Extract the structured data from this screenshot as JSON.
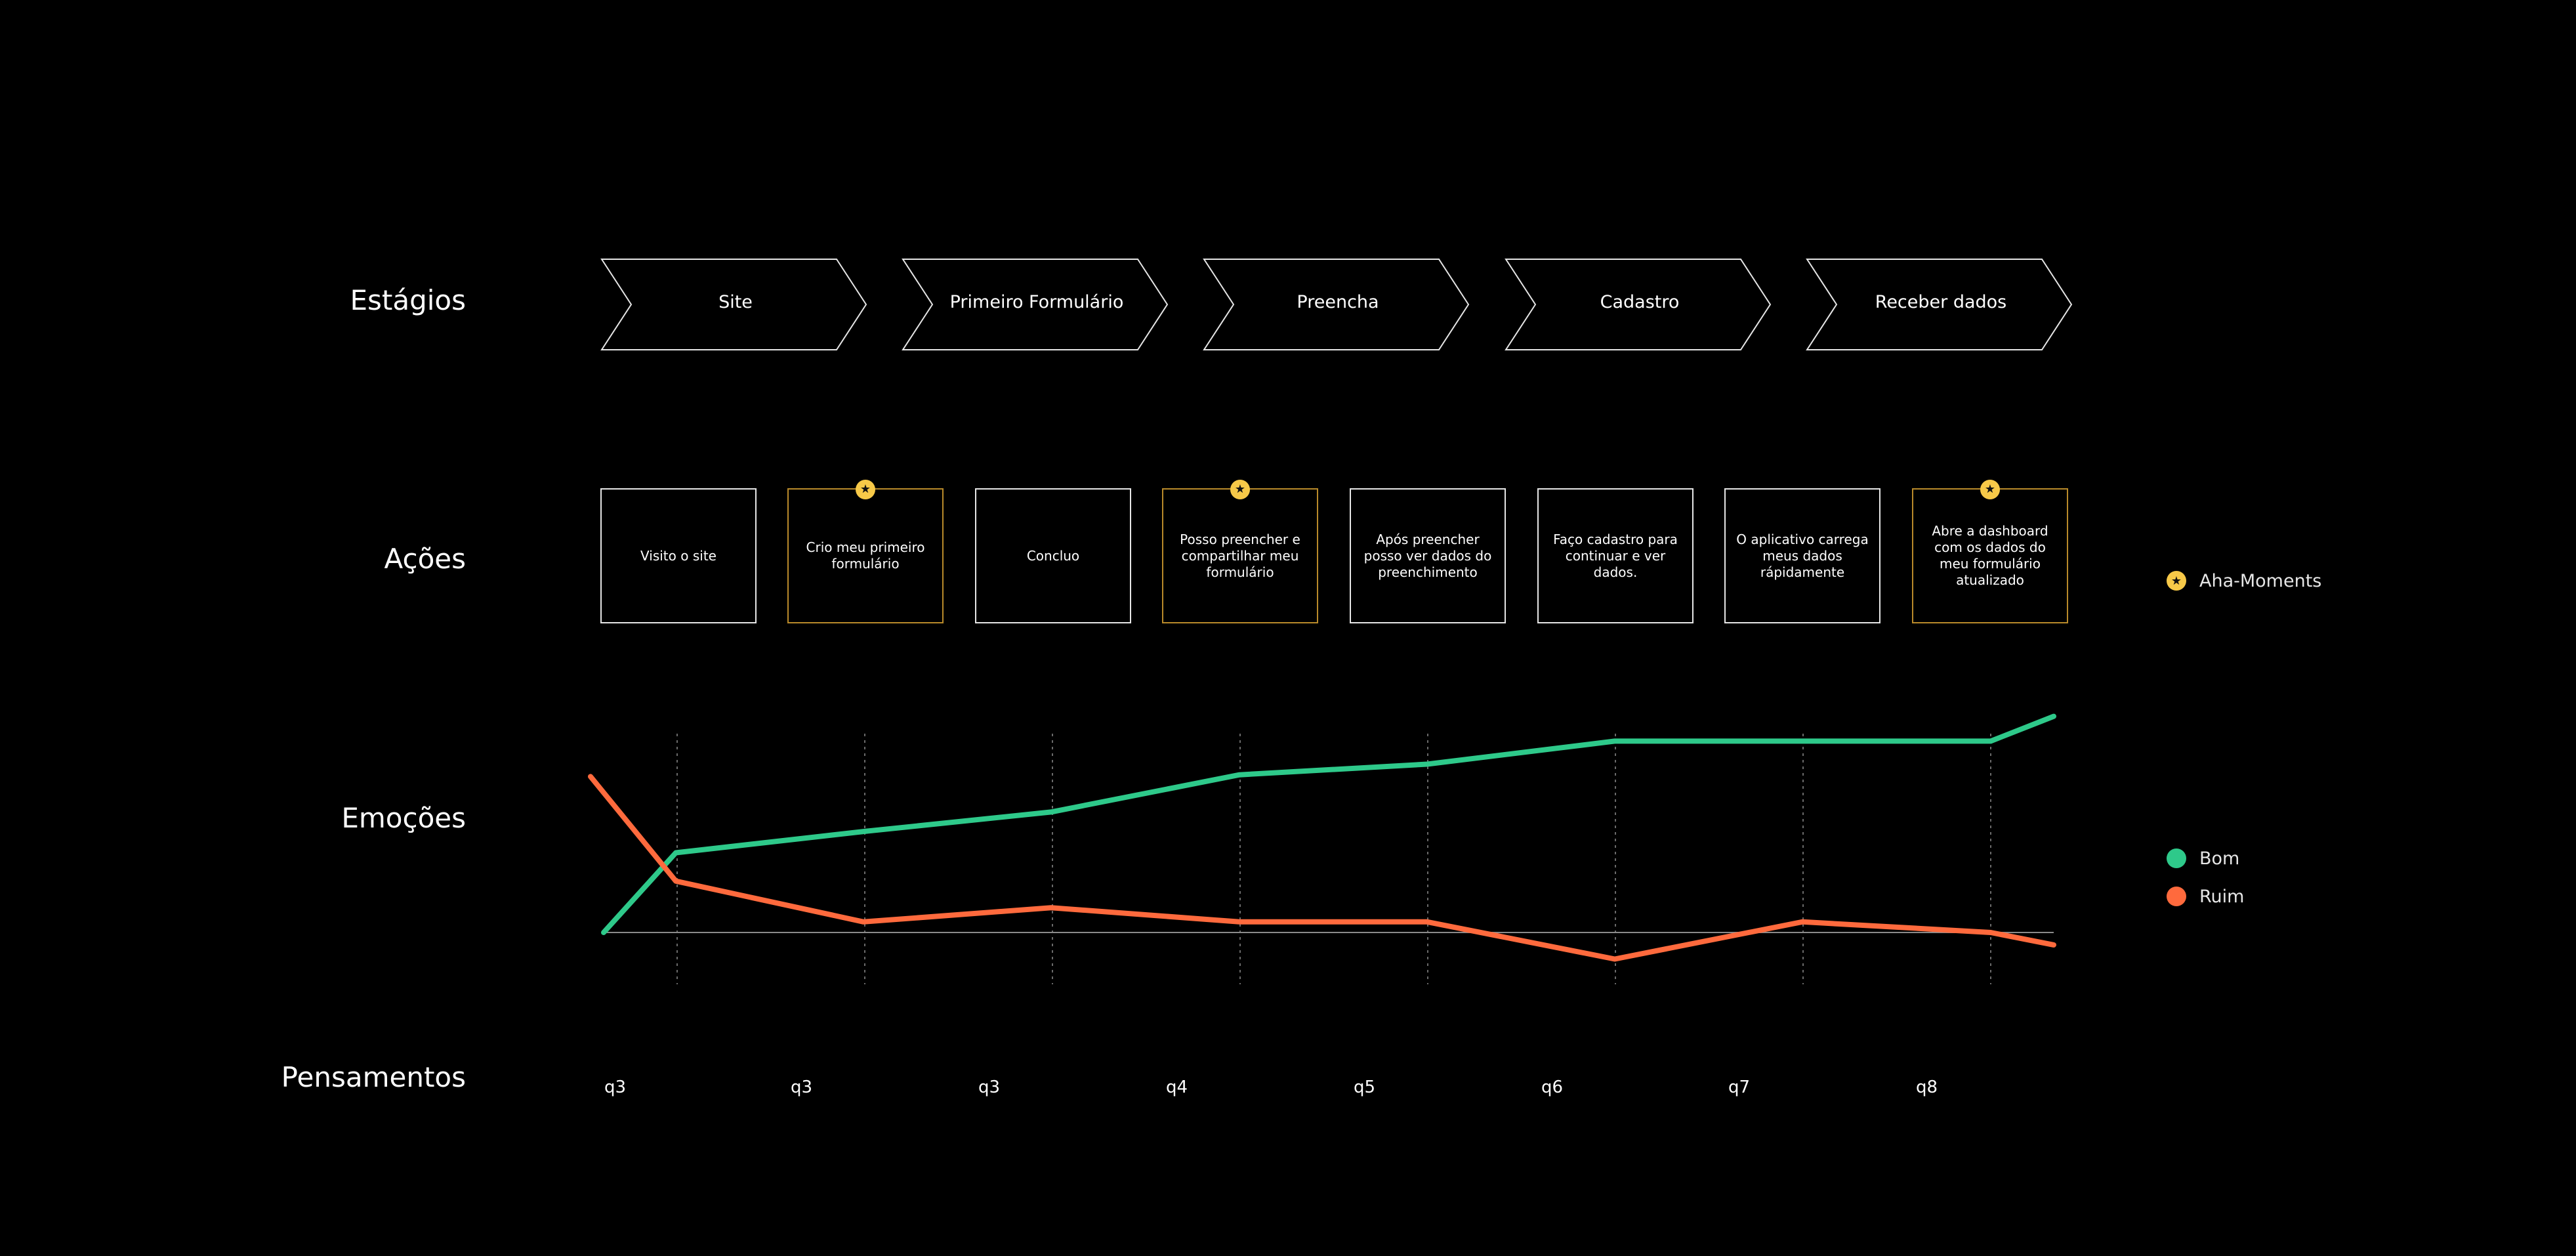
{
  "row_labels": {
    "stages": "Estágios",
    "actions": "Ações",
    "emotions": "Emoções",
    "thoughts": "Pensamentos"
  },
  "stages": [
    {
      "label": "Site"
    },
    {
      "label": "Primeiro Formulário"
    },
    {
      "label": "Preencha"
    },
    {
      "label": "Cadastro"
    },
    {
      "label": "Receber dados"
    }
  ],
  "actions": [
    {
      "text": "Visito o site",
      "aha": false
    },
    {
      "text": "Crio meu primeiro formulário",
      "aha": true
    },
    {
      "text": "Concluo",
      "aha": false
    },
    {
      "text": "Posso preencher e compartilhar meu formulário",
      "aha": true
    },
    {
      "text": "Após preencher posso ver dados do preenchimento",
      "aha": false
    },
    {
      "text": "Faço cadastro para continuar e ver dados.",
      "aha": false
    },
    {
      "text": "O aplicativo carrega meus dados rápidamente",
      "aha": false
    },
    {
      "text": "Abre a dashboard com os dados do meu formulário atualizado",
      "aha": true
    }
  ],
  "legend": {
    "aha": {
      "label": "Aha-Moments",
      "icon": "star-icon",
      "color": "#f7c948"
    },
    "good": {
      "label": "Bom",
      "color": "#2ec98a"
    },
    "bad": {
      "label": "Ruim",
      "color": "#ff6a3d"
    }
  },
  "thoughts": [
    "q3",
    "q3",
    "q3",
    "q4",
    "q5",
    "q6",
    "q7",
    "q8"
  ],
  "chart_data": {
    "type": "line",
    "x": [
      0,
      1,
      2,
      3,
      4,
      5,
      6,
      7,
      8,
      9
    ],
    "series": [
      {
        "name": "Bom",
        "color": "#2ec98a",
        "values": [
          0,
          45,
          57,
          68,
          89,
          95,
          108,
          108,
          108,
          122
        ]
      },
      {
        "name": "Ruim",
        "color": "#ff6a3d",
        "values": [
          88,
          29,
          6,
          14,
          6,
          6,
          -15,
          6,
          0,
          -7
        ]
      }
    ],
    "ylim": [
      -33,
      122
    ],
    "baseline": 0,
    "grid": true
  }
}
